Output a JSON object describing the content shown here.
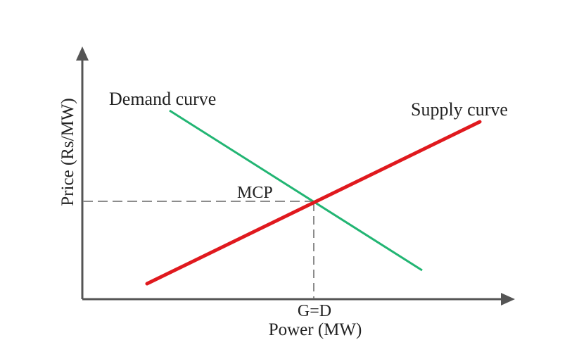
{
  "axes": {
    "x_label": "Power (MW)",
    "y_label": "Price (Rs/MW)",
    "color": "#555555"
  },
  "curves": {
    "demand": {
      "label": "Demand curve",
      "color": "#22b573"
    },
    "supply": {
      "label": "Supply curve",
      "color": "#e0191e"
    }
  },
  "equilibrium": {
    "price_label": "MCP",
    "quantity_label": "G=D",
    "guide_color": "#8c8c8c"
  }
}
